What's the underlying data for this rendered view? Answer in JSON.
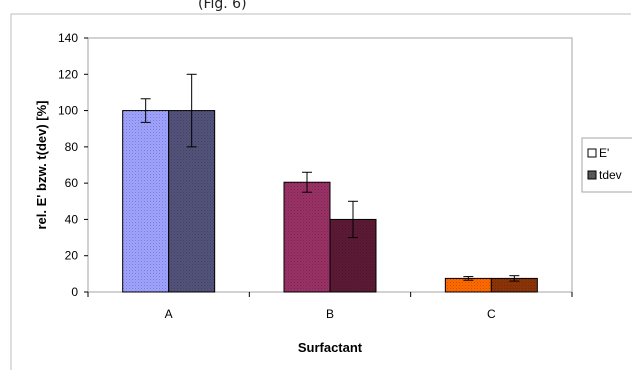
{
  "chart_data": {
    "type": "bar",
    "title": "",
    "top_fragment": "(Fig. 6)",
    "categories": [
      "A",
      "B",
      "C"
    ],
    "series": [
      {
        "name": "E'",
        "values": [
          100,
          60.5,
          7.5
        ],
        "errors": [
          6.5,
          5.5,
          1.0
        ]
      },
      {
        "name": "tdev",
        "values": [
          100,
          40,
          7.5
        ],
        "errors": [
          20,
          10,
          1.5
        ]
      }
    ],
    "xlabel": "Surfactant",
    "ylabel": "rel. E' bzw. t(dev) [%]",
    "ylim": [
      0,
      140
    ],
    "yticks": [
      0,
      20,
      40,
      60,
      80,
      100,
      120,
      140
    ],
    "grid": false,
    "legend": "right",
    "bar_colors": {
      "E'": [
        "#9fa3ff",
        "#9b3266",
        "#ff6a00"
      ],
      "tdev": [
        "#52527a",
        "#5c1a35",
        "#8c3408"
      ]
    },
    "legend_swatches": {
      "E'": "#ffffff",
      "tdev": "#5b5b5b"
    }
  }
}
